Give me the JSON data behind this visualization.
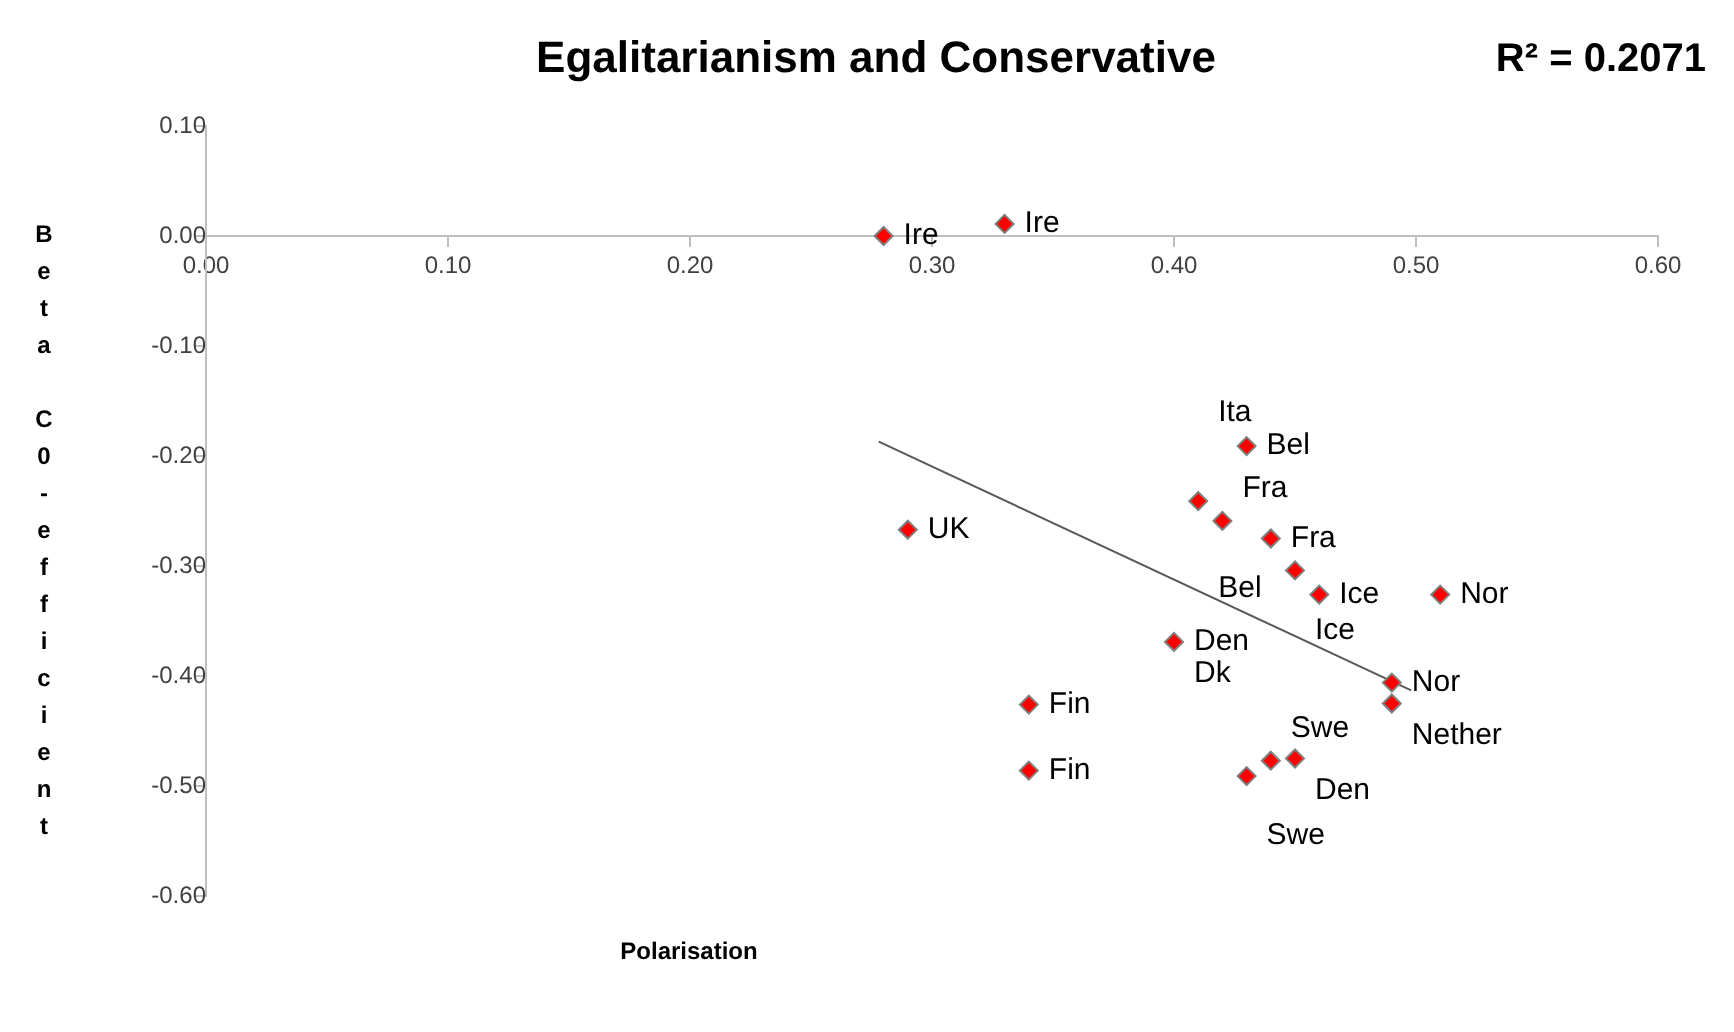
{
  "chart_data": {
    "type": "scatter",
    "title": "Egalitarianism and Conservative",
    "xlabel": "Polarisation",
    "ylabel": "Beta C0-efficient",
    "xlim": [
      0,
      0.6
    ],
    "xticks": [
      {
        "value": 0,
        "label": "0.00"
      },
      {
        "value": 0.1,
        "label": "0.10"
      },
      {
        "value": 0.2,
        "label": "0.20"
      },
      {
        "value": 0.3,
        "label": "0.30"
      },
      {
        "value": 0.4,
        "label": "0.40"
      },
      {
        "value": 0.5,
        "label": "0.50"
      },
      {
        "value": 0.6,
        "label": "0.60"
      }
    ],
    "ylim": [
      -0.6,
      0.1
    ],
    "yticks": [
      {
        "value": -0.6,
        "label": "-0.60"
      },
      {
        "value": -0.5,
        "label": "-0.50"
      },
      {
        "value": -0.4,
        "label": "-0.40"
      },
      {
        "value": -0.3,
        "label": "-0.30"
      },
      {
        "value": -0.2,
        "label": "-0.20"
      },
      {
        "value": -0.1,
        "label": "-0.10"
      },
      {
        "value": 0,
        "label": "0.00"
      },
      {
        "value": 0.1,
        "label": "0.10"
      }
    ],
    "grid": false,
    "legend": false,
    "marker": "diamond",
    "series": [
      {
        "color": "#ff0000",
        "x": [
          0.28,
          0.33,
          0.43,
          0.41,
          0.42,
          0.44,
          0.45,
          0.46,
          0.51,
          0.29,
          0.4,
          0.49,
          0.49,
          0.34,
          0.34,
          0.44,
          0.45,
          0.43
        ],
        "values": [
          0.0,
          0.011,
          -0.191,
          -0.241,
          -0.259,
          -0.275,
          -0.304,
          -0.326,
          -0.326,
          -0.267,
          -0.369,
          -0.406,
          -0.425,
          -0.426,
          -0.486,
          -0.477,
          -0.475,
          -0.491
        ]
      },
      {
        "type": "line",
        "color": "#595959",
        "marker": "none",
        "x": [
          0.278,
          0.498
        ],
        "values": [
          -0.187,
          -0.413
        ]
      }
    ],
    "annotations": [
      "R² = 0.2071",
      {
        "text": "Ire",
        "x": 0.28,
        "y": 0.0
      },
      {
        "text": "Ire",
        "x": 0.33,
        "y": 0.011
      },
      {
        "text": "Bel",
        "x": 0.43,
        "y": -0.191
      },
      {
        "text": "Bel",
        "x": 0.41,
        "y": -0.241
      },
      {
        "text": "Ita",
        "x": 0.41,
        "y": -0.241
      },
      {
        "text": "Fra",
        "x": 0.42,
        "y": -0.259
      },
      {
        "text": "Fra",
        "x": 0.44,
        "y": -0.275
      },
      {
        "text": "Ice",
        "x": 0.45,
        "y": -0.304
      },
      {
        "text": "Ice",
        "x": 0.46,
        "y": -0.326
      },
      {
        "text": "Nor",
        "x": 0.51,
        "y": -0.326
      },
      {
        "text": "UK",
        "x": 0.29,
        "y": -0.267
      },
      {
        "text": "Den",
        "x": 0.4,
        "y": -0.369
      },
      {
        "text": "Dk",
        "x": 0.4,
        "y": -0.369
      },
      {
        "text": "Nor",
        "x": 0.49,
        "y": -0.406
      },
      {
        "text": "Nether",
        "x": 0.49,
        "y": -0.425
      },
      {
        "text": "Fin",
        "x": 0.34,
        "y": -0.426
      },
      {
        "text": "Fin",
        "x": 0.34,
        "y": -0.486
      },
      {
        "text": "Swe",
        "x": 0.44,
        "y": -0.477
      },
      {
        "text": "Den",
        "x": 0.45,
        "y": -0.475
      },
      {
        "text": "Swe",
        "x": 0.43,
        "y": -0.491
      }
    ]
  }
}
